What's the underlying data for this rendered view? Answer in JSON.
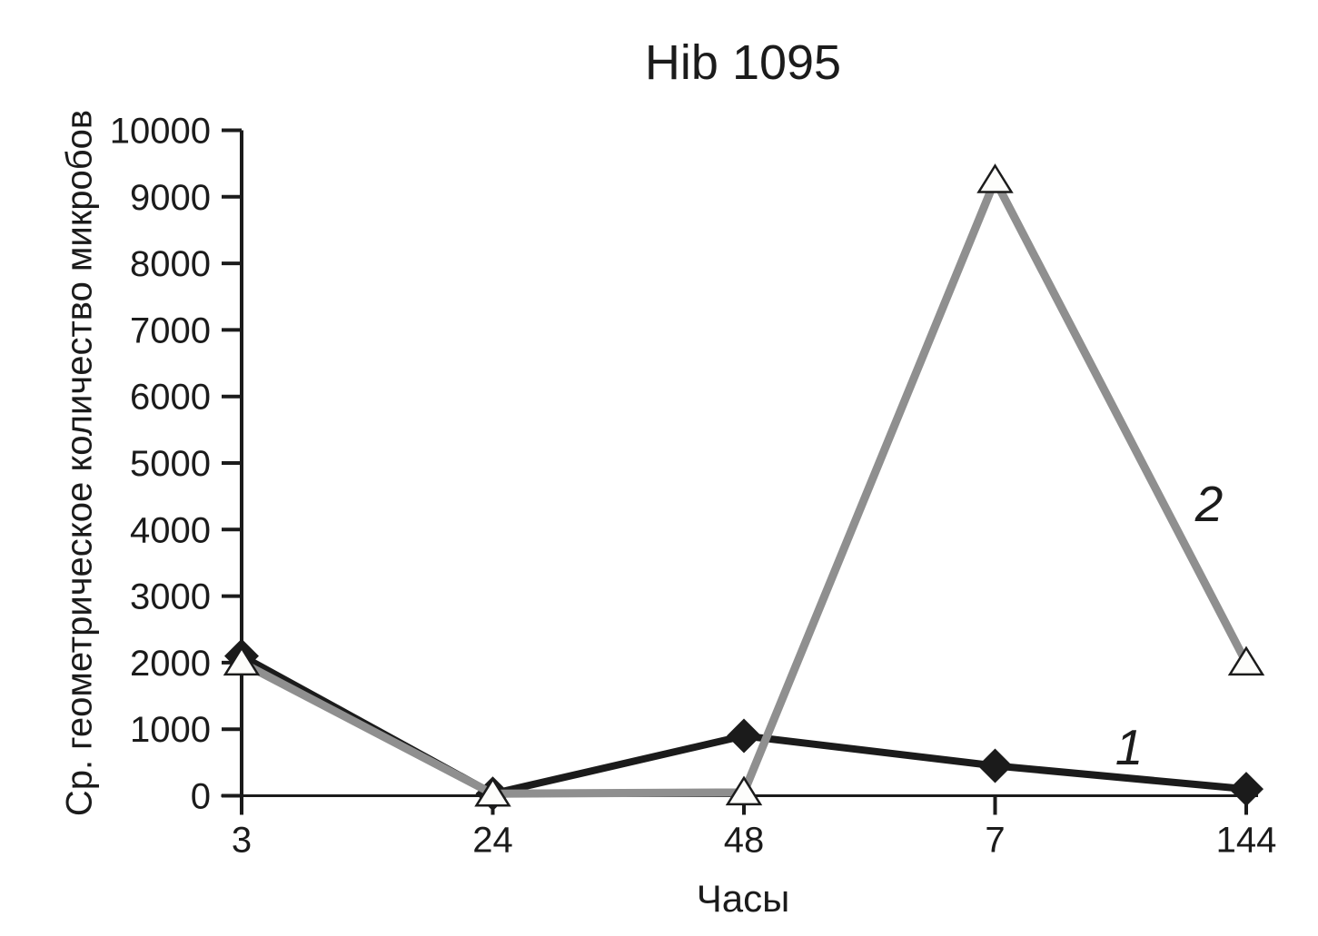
{
  "chart_data": {
    "type": "line",
    "title": "Hib 1095",
    "xlabel": "Часы",
    "ylabel": "Ср. геометрическое количество микробов",
    "categories": [
      "3",
      "24",
      "48",
      "7",
      "144"
    ],
    "ylim": [
      0,
      10000
    ],
    "ytick_step": 1000,
    "grid": false,
    "legend_position": "inline-labels-on-lines",
    "series": [
      {
        "name": "1",
        "marker": "diamond-filled",
        "color": "#1b1b1b",
        "values": [
          2100,
          30,
          900,
          450,
          100
        ]
      },
      {
        "name": "2",
        "marker": "triangle-open",
        "color": "#8f8f8f",
        "values": [
          2000,
          30,
          50,
          9250,
          2000
        ]
      }
    ],
    "colors": {
      "axis": "#1b1b1b",
      "background": "#ffffff",
      "series_1": "#1b1b1b",
      "series_2": "#8f8f8f",
      "marker_open_fill": "#fdfdfb"
    }
  }
}
